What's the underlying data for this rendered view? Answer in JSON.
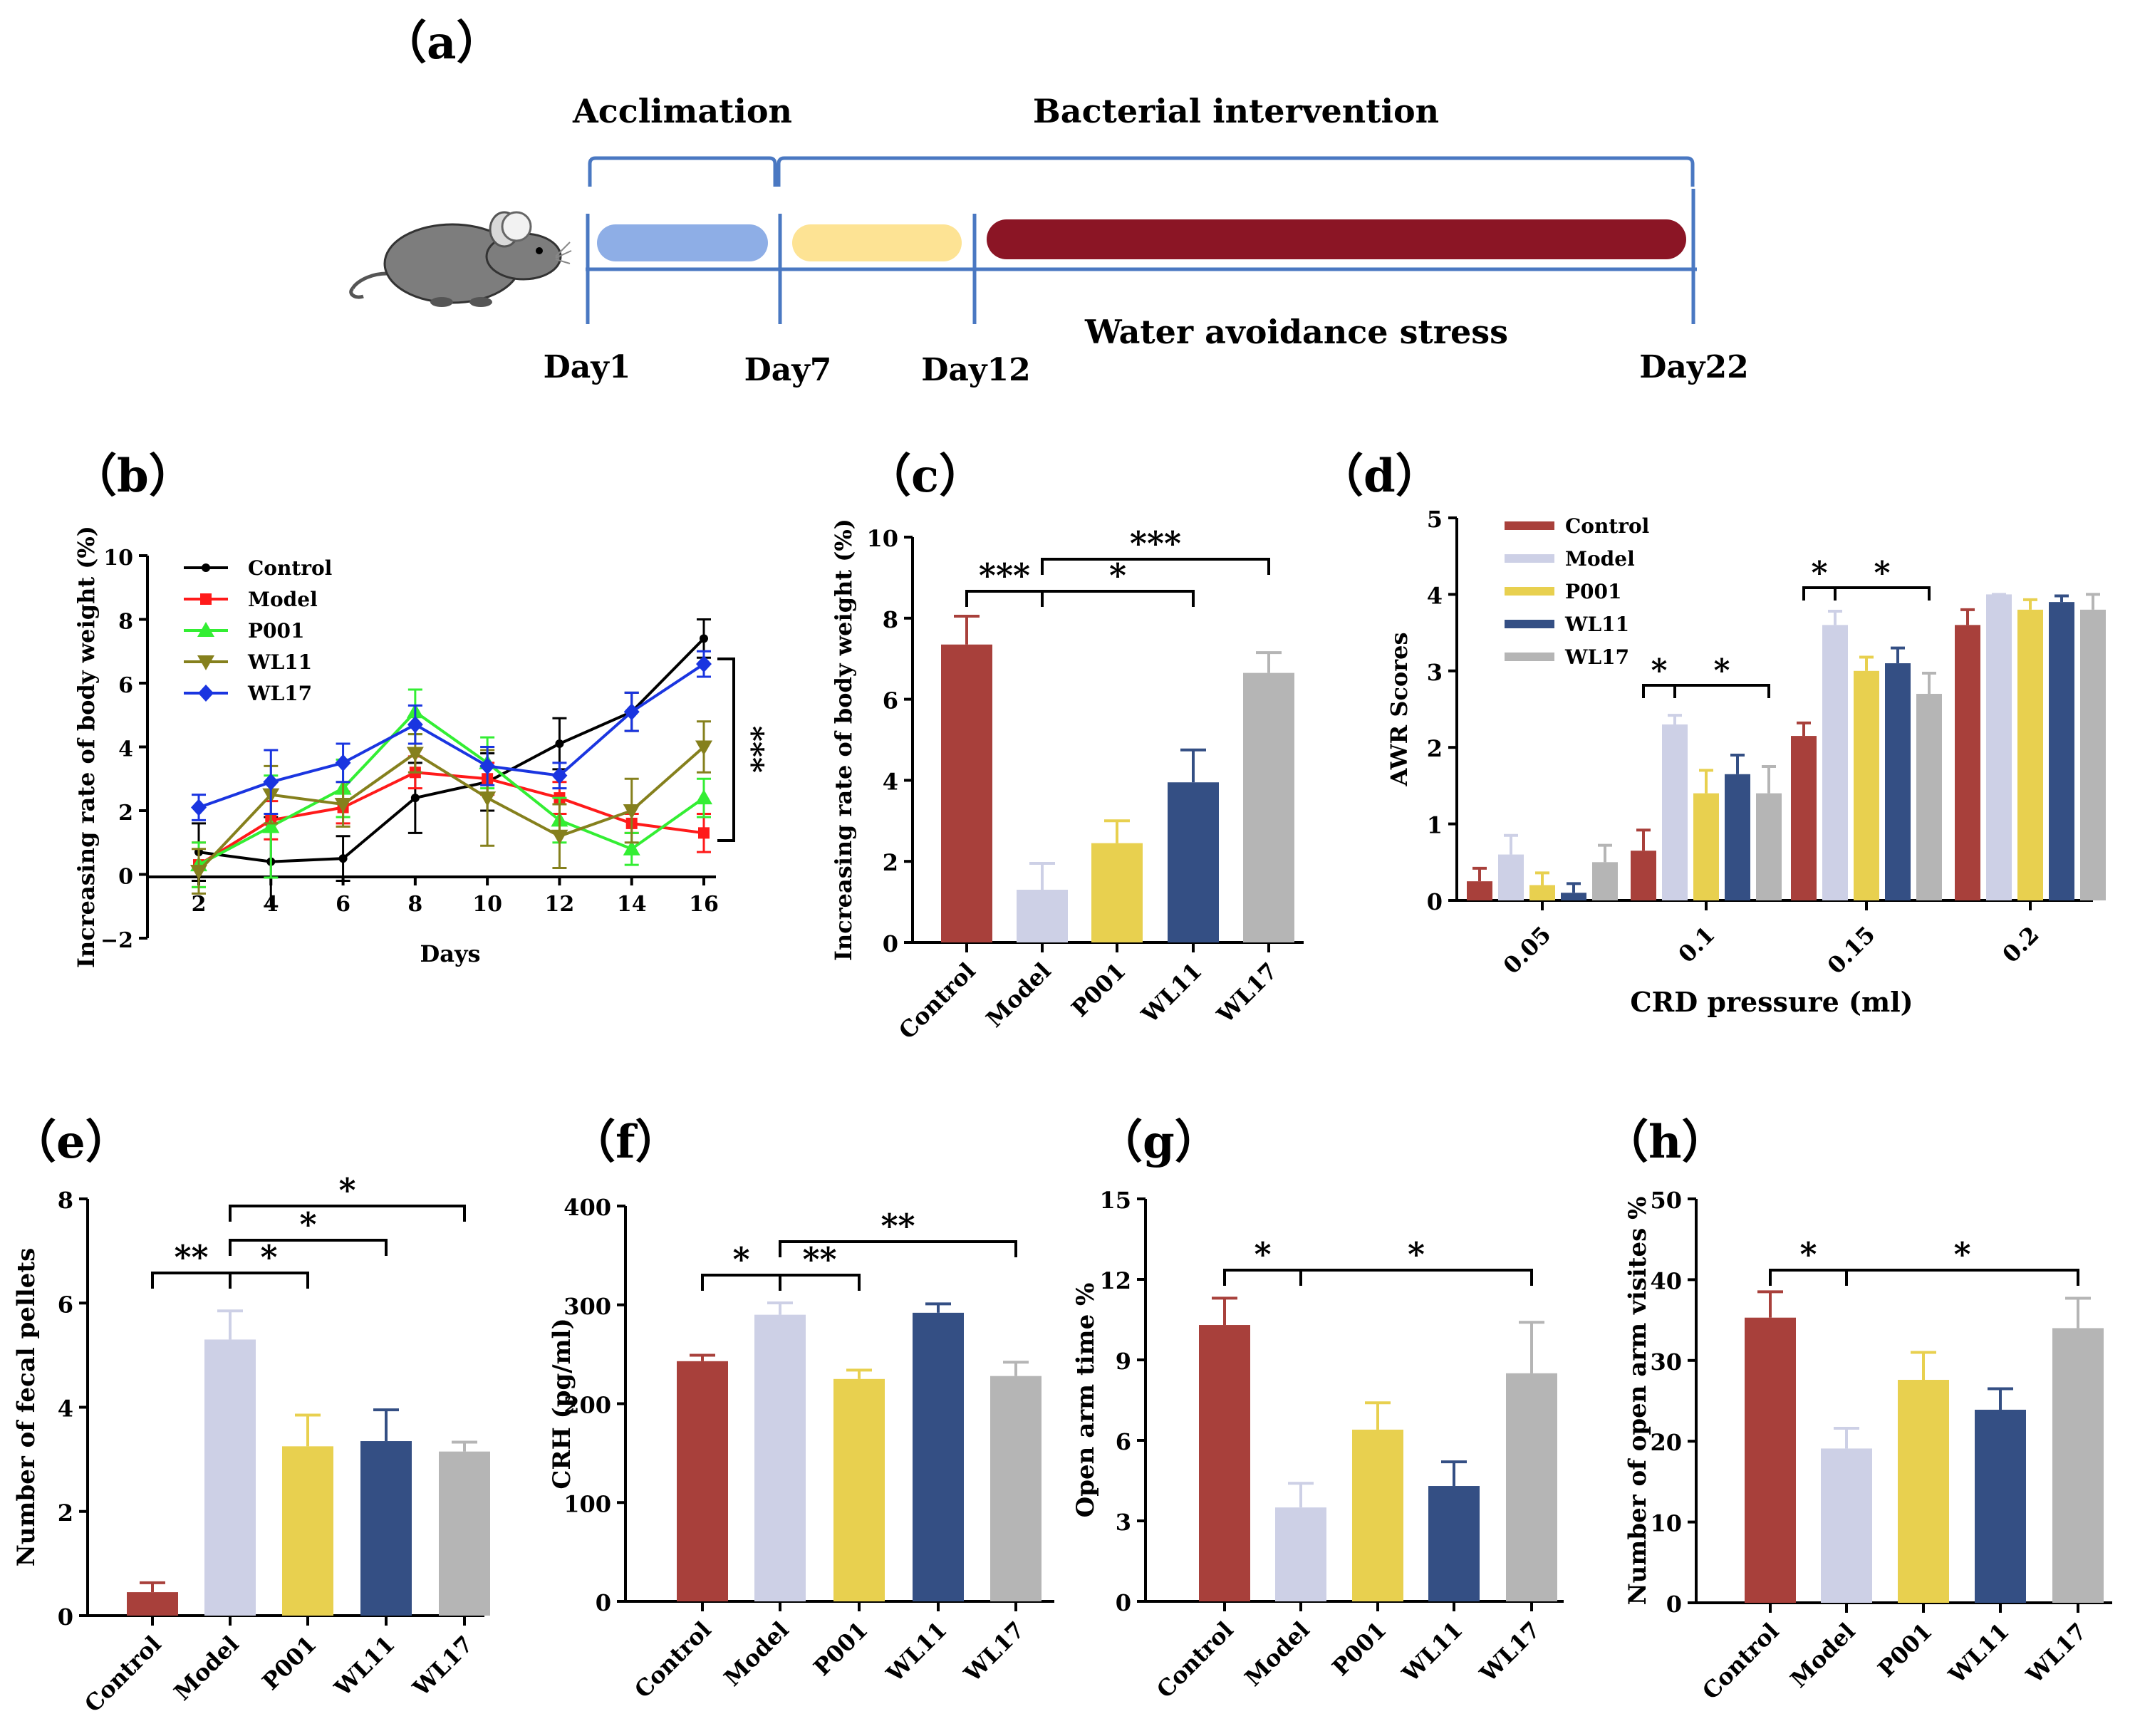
{
  "colors": {
    "Control": "#a8403b",
    "Model": "#cdd0e6",
    "P001": "#e8d04f",
    "WL11": "#344f84",
    "WL17": "#b5b5b5",
    "line_Control": "#000000",
    "line_Model": "#ff1a1a",
    "line_P001": "#33ee33",
    "line_WL11": "#85801d",
    "line_WL17": "#1a35e0",
    "acclimation_bar": "#8eaee6",
    "intervention_bar": "#fde394",
    "stress_bar": "#8b1525",
    "bracket": "#4a78c2",
    "mouse": "#7d7d7d"
  },
  "timeline": {
    "label": "（a）",
    "phase_acclimation": "Acclimation",
    "phase_bacterial": "Bacterial intervention",
    "stress_label": "Water avoidance stress",
    "days": [
      "Day1",
      "Day7",
      "Day12",
      "Day22"
    ]
  },
  "chart_data": [
    {
      "id": "b",
      "panel_label": "（b）",
      "type": "line",
      "x": [
        2,
        4,
        6,
        8,
        10,
        12,
        14,
        16
      ],
      "xlabel": "Days",
      "ylabel": "Increasing rate of body weight (%)",
      "ylim": [
        -2,
        10
      ],
      "xticks": [
        "2",
        "4",
        "6",
        "8",
        "10",
        "12",
        "14",
        "16"
      ],
      "yticks": [
        "−2",
        "0",
        "2",
        "4",
        "6",
        "8",
        "10"
      ],
      "legend_position": "top-left",
      "significance": "***",
      "series": [
        {
          "name": "Control",
          "marker": "circle",
          "values": [
            0.7,
            0.4,
            0.5,
            2.4,
            2.9,
            4.1,
            5.1,
            7.4
          ],
          "errors": [
            0.9,
            1.4,
            0.7,
            1.1,
            0.9,
            0.8,
            0.6,
            0.6
          ]
        },
        {
          "name": "Model",
          "marker": "square",
          "values": [
            0.3,
            1.7,
            2.1,
            3.2,
            3.0,
            2.4,
            1.6,
            1.3
          ],
          "errors": [
            0.7,
            0.6,
            0.5,
            0.5,
            0.5,
            0.5,
            0.3,
            0.6
          ]
        },
        {
          "name": "P001",
          "marker": "triangle-up",
          "values": [
            0.3,
            1.5,
            2.7,
            5.1,
            3.5,
            1.7,
            0.8,
            2.4
          ],
          "errors": [
            0.7,
            1.6,
            0.9,
            0.7,
            0.8,
            0.7,
            0.5,
            0.6
          ]
        },
        {
          "name": "WL11",
          "marker": "triangle-down",
          "values": [
            0.1,
            2.5,
            2.2,
            3.8,
            2.4,
            1.2,
            2.0,
            4.0
          ],
          "errors": [
            0.7,
            0.9,
            0.7,
            0.6,
            1.5,
            1.0,
            1.0,
            0.8
          ]
        },
        {
          "name": "WL17",
          "marker": "diamond",
          "values": [
            2.1,
            2.9,
            3.5,
            4.7,
            3.4,
            3.1,
            5.1,
            6.6
          ],
          "errors": [
            0.4,
            1.0,
            0.6,
            0.6,
            0.6,
            0.4,
            0.6,
            0.4
          ]
        }
      ]
    },
    {
      "id": "c",
      "panel_label": "（c）",
      "type": "bar",
      "categories": [
        "Control",
        "Model",
        "P001",
        "WL11",
        "WL17"
      ],
      "values": [
        7.35,
        1.3,
        2.45,
        3.95,
        6.65
      ],
      "errors": [
        0.7,
        0.65,
        0.55,
        0.8,
        0.5
      ],
      "ylabel": "Increasing rate of body weight (%)",
      "ylim": [
        0,
        10
      ],
      "yticks": [
        "0",
        "2",
        "4",
        "6",
        "8",
        "10"
      ],
      "brackets": [
        {
          "from": 0,
          "to": 1,
          "label": "***"
        },
        {
          "from": 1,
          "to": 3,
          "label": "*"
        },
        {
          "from": 1,
          "to": 4,
          "label": "***"
        }
      ]
    },
    {
      "id": "d",
      "panel_label": "（d）",
      "type": "bar",
      "categories": [
        "0.05",
        "0.1",
        "0.15",
        "0.2"
      ],
      "xlabel": "CRD pressure (ml)",
      "ylabel": "AWR Scores",
      "ylim": [
        0,
        5
      ],
      "yticks": [
        "0",
        "1",
        "2",
        "3",
        "4",
        "5"
      ],
      "legend_position": "top-left",
      "series": [
        {
          "name": "Control",
          "values": [
            0.25,
            0.65,
            2.15,
            3.6
          ],
          "errors": [
            0.17,
            0.27,
            0.17,
            0.2
          ]
        },
        {
          "name": "Model",
          "values": [
            0.6,
            2.3,
            3.6,
            4.0
          ],
          "errors": [
            0.25,
            0.12,
            0.18,
            0.0
          ]
        },
        {
          "name": "P001",
          "values": [
            0.2,
            1.4,
            3.0,
            3.8
          ],
          "errors": [
            0.16,
            0.3,
            0.18,
            0.13
          ]
        },
        {
          "name": "WL11",
          "values": [
            0.1,
            1.65,
            3.1,
            3.9
          ],
          "errors": [
            0.12,
            0.25,
            0.2,
            0.08
          ]
        },
        {
          "name": "WL17",
          "values": [
            0.5,
            1.4,
            2.7,
            3.8
          ],
          "errors": [
            0.22,
            0.35,
            0.27,
            0.2
          ]
        }
      ],
      "brackets": [
        {
          "group": 1,
          "from": 0,
          "to": 1,
          "label": "*"
        },
        {
          "group": 1,
          "from": 1,
          "to": 4,
          "label": "*"
        },
        {
          "group": 2,
          "from": 0,
          "to": 1,
          "label": "*"
        },
        {
          "group": 2,
          "from": 1,
          "to": 4,
          "label": "*"
        }
      ]
    },
    {
      "id": "e",
      "panel_label": "（e）",
      "type": "bar",
      "categories": [
        "Control",
        "Model",
        "P001",
        "WL11",
        "WL17"
      ],
      "values": [
        0.45,
        5.3,
        3.25,
        3.35,
        3.15
      ],
      "errors": [
        0.18,
        0.55,
        0.6,
        0.6,
        0.18
      ],
      "ylabel": "Number of fecal pellets",
      "ylim": [
        0,
        8
      ],
      "yticks": [
        "0",
        "2",
        "4",
        "6",
        "8"
      ],
      "brackets": [
        {
          "from": 0,
          "to": 1,
          "label": "**"
        },
        {
          "from": 1,
          "to": 2,
          "label": "*"
        },
        {
          "from": 1,
          "to": 3,
          "label": "*"
        },
        {
          "from": 1,
          "to": 4,
          "label": "*"
        }
      ]
    },
    {
      "id": "f",
      "panel_label": "（f）",
      "type": "bar",
      "categories": [
        "Control",
        "Model",
        "P001",
        "WL11",
        "WL17"
      ],
      "values": [
        243,
        290,
        225,
        292,
        228
      ],
      "errors": [
        6,
        12,
        9,
        9,
        14
      ],
      "ylabel": "CRH (pg/ml)",
      "ylim": [
        0,
        400
      ],
      "yticks": [
        "0",
        "100",
        "200",
        "300",
        "400"
      ],
      "brackets": [
        {
          "from": 0,
          "to": 1,
          "label": "*"
        },
        {
          "from": 1,
          "to": 2,
          "label": "**"
        },
        {
          "from": 1,
          "to": 4,
          "label": "**"
        }
      ]
    },
    {
      "id": "g",
      "panel_label": "（g）",
      "type": "bar",
      "categories": [
        "Control",
        "Model",
        "P001",
        "WL11",
        "WL17"
      ],
      "values": [
        10.3,
        3.5,
        6.4,
        4.3,
        8.5
      ],
      "errors": [
        1.0,
        0.9,
        1.0,
        0.9,
        1.9
      ],
      "ylabel": "Open arm time %",
      "ylim": [
        0,
        15
      ],
      "yticks": [
        "0",
        "3",
        "6",
        "9",
        "12",
        "15"
      ],
      "brackets": [
        {
          "from": 0,
          "to": 1,
          "label": "*"
        },
        {
          "from": 1,
          "to": 4,
          "label": "*"
        }
      ]
    },
    {
      "id": "h",
      "panel_label": "（h）",
      "type": "bar",
      "categories": [
        "Control",
        "Model",
        "P001",
        "WL11",
        "WL17"
      ],
      "values": [
        35.3,
        19.1,
        27.6,
        23.9,
        34.0
      ],
      "errors": [
        3.2,
        2.5,
        3.4,
        2.6,
        3.7
      ],
      "ylabel": "Number of open arm visites %",
      "ylim": [
        0,
        50
      ],
      "yticks": [
        "0",
        "10",
        "20",
        "30",
        "40",
        "50"
      ],
      "brackets": [
        {
          "from": 0,
          "to": 1,
          "label": "*"
        },
        {
          "from": 1,
          "to": 4,
          "label": "*"
        }
      ]
    }
  ]
}
